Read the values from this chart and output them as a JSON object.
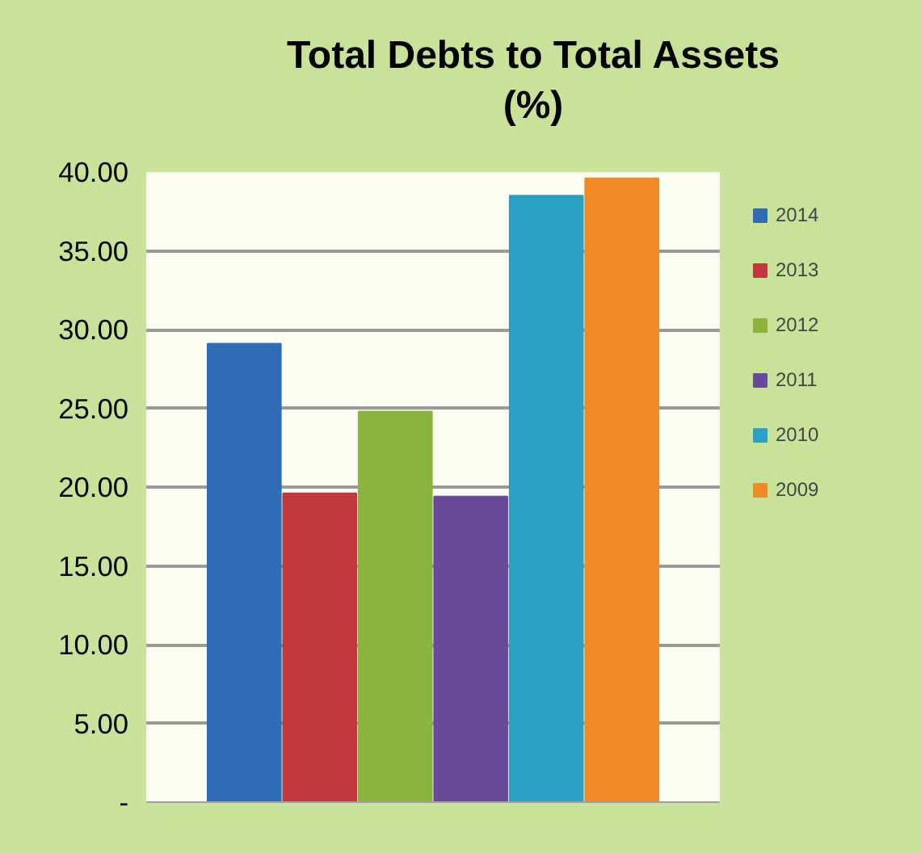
{
  "chart_data": {
    "type": "bar",
    "title": "Total Debts to Total Assets\n(%)",
    "categories": [
      null
    ],
    "series": [
      {
        "name": "2014",
        "color": "#2f6db5",
        "values": [
          29.1
        ]
      },
      {
        "name": "2013",
        "color": "#c0393b",
        "values": [
          19.6
        ]
      },
      {
        "name": "2012",
        "color": "#8cb43c",
        "values": [
          24.8
        ]
      },
      {
        "name": "2011",
        "color": "#6a4a9a",
        "values": [
          19.4
        ]
      },
      {
        "name": "2010",
        "color": "#2aa0c4",
        "values": [
          38.5
        ]
      },
      {
        "name": "2009",
        "color": "#f08a24",
        "values": [
          39.6
        ]
      }
    ],
    "ylim": [
      0,
      40
    ],
    "yticks": [
      {
        "value": 0,
        "label": "-"
      },
      {
        "value": 5,
        "label": "5.00"
      },
      {
        "value": 10,
        "label": "10.00"
      },
      {
        "value": 15,
        "label": "15.00"
      },
      {
        "value": 20,
        "label": "20.00"
      },
      {
        "value": 25,
        "label": "25.00"
      },
      {
        "value": 30,
        "label": "30.00"
      },
      {
        "value": 35,
        "label": "35.00"
      },
      {
        "value": 40,
        "label": "40.00"
      }
    ],
    "grid": "y",
    "legend": "right"
  }
}
